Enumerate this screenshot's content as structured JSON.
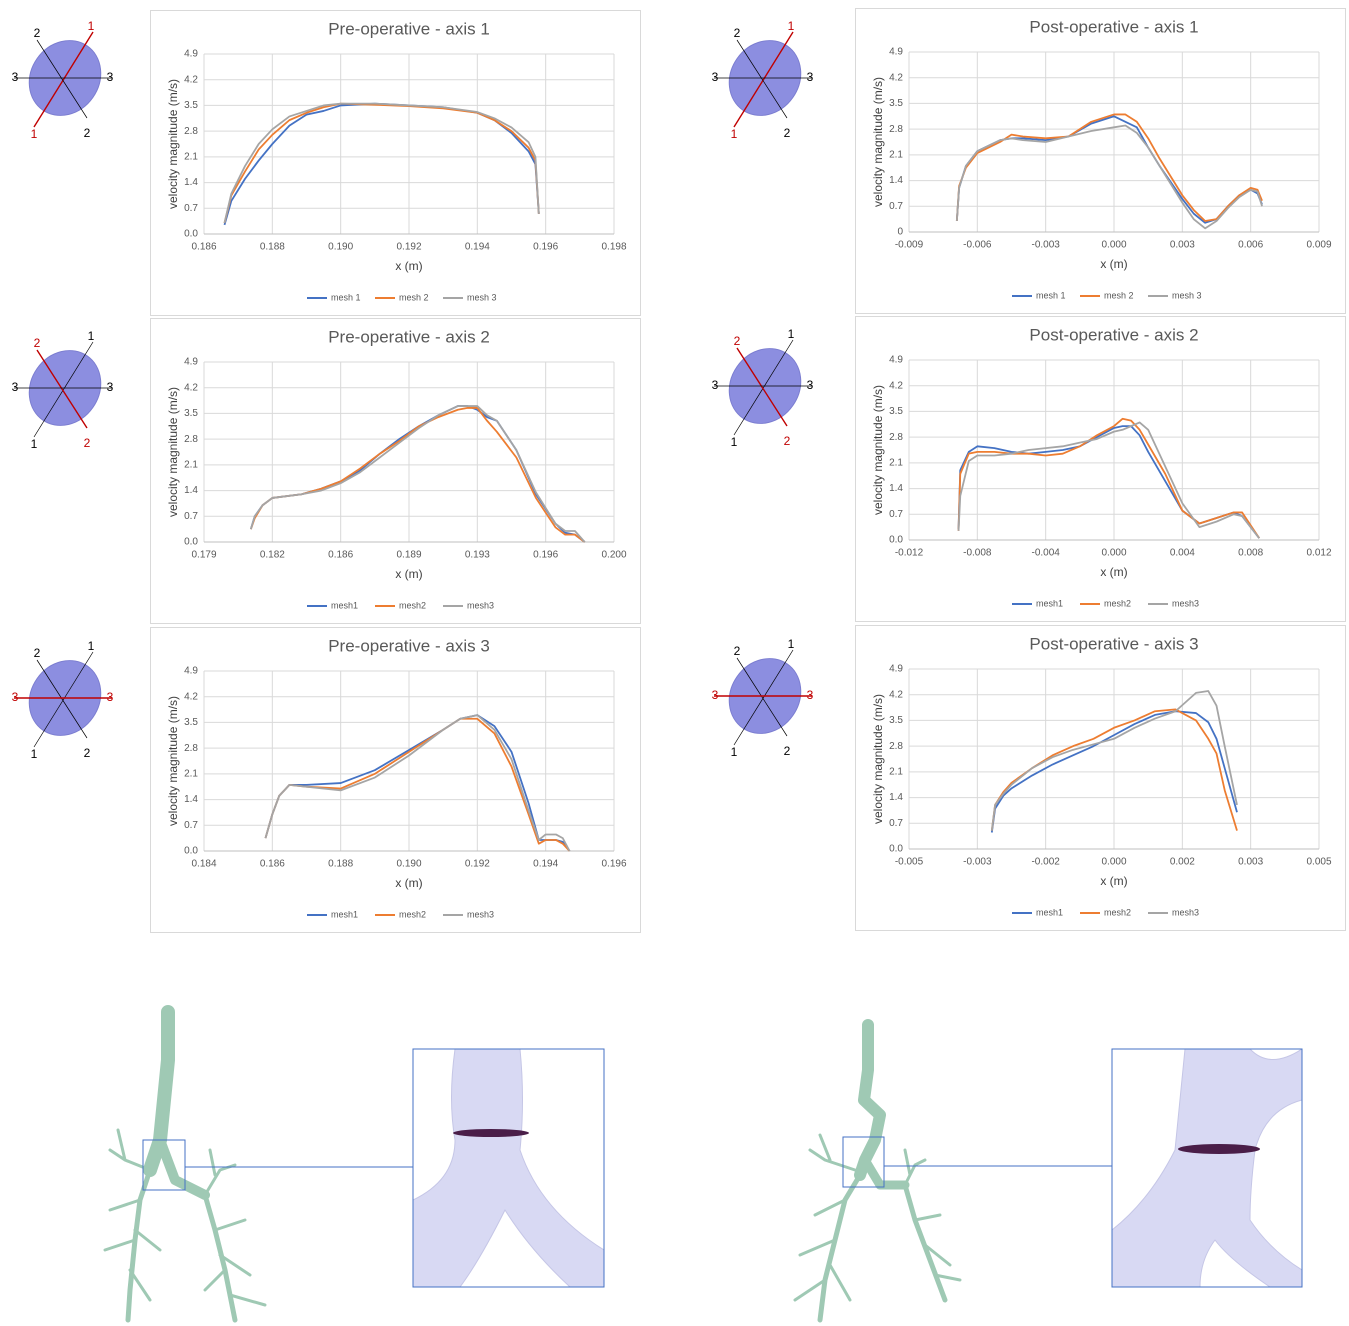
{
  "chart_data": [
    {
      "type": "line",
      "title": "Pre-operative - axis 1",
      "x_label": "x (m)",
      "y_label": "velocity magnitude (m/s)",
      "x": [
        0.1866,
        0.1868,
        0.1872,
        0.1876,
        0.188,
        0.1885,
        0.189,
        0.1895,
        0.19,
        0.191,
        0.192,
        0.193,
        0.194,
        0.1945,
        0.195,
        0.1955,
        0.1957,
        0.1958
      ],
      "series": [
        {
          "name": "mesh 1",
          "color": "#4472c4",
          "values": [
            0.25,
            0.9,
            1.5,
            2.0,
            2.45,
            2.95,
            3.25,
            3.35,
            3.5,
            3.55,
            3.5,
            3.45,
            3.3,
            3.1,
            2.75,
            2.25,
            1.9,
            0.55
          ]
        },
        {
          "name": "mesh 2",
          "color": "#ed7d31",
          "values": [
            0.3,
            1.05,
            1.7,
            2.3,
            2.7,
            3.1,
            3.3,
            3.45,
            3.55,
            3.52,
            3.48,
            3.42,
            3.3,
            3.1,
            2.8,
            2.35,
            2.0,
            0.55
          ]
        },
        {
          "name": "mesh 3",
          "color": "#a5a5a5",
          "values": [
            0.3,
            1.1,
            1.85,
            2.45,
            2.85,
            3.2,
            3.35,
            3.5,
            3.55,
            3.55,
            3.5,
            3.45,
            3.32,
            3.15,
            2.9,
            2.5,
            2.1,
            0.55
          ]
        }
      ],
      "xlim": [
        0.186,
        0.198
      ],
      "xticks": [
        0.186,
        0.188,
        {
          "value": 0.19,
          "label": "0.190"
        },
        0.192,
        0.194,
        0.196,
        0.198
      ],
      "ylim": [
        0,
        4.9
      ],
      "yticks": [
        {
          "value": 0,
          "label": "0.0"
        },
        0.7,
        1.4,
        2.1,
        2.8,
        3.5,
        4.2,
        4.9
      ],
      "grid": true,
      "legend": "bottom"
    },
    {
      "type": "line",
      "title": "Post-operative - axis 1",
      "x_label": "x (m)",
      "y_label": "velocity magnitude (m/s)",
      "x": [
        -0.0069,
        -0.0068,
        -0.0065,
        -0.006,
        -0.005,
        -0.0045,
        -0.004,
        -0.003,
        -0.002,
        -0.001,
        0,
        0.0005,
        0.001,
        0.0015,
        0.002,
        0.003,
        0.0035,
        0.004,
        0.0045,
        0.005,
        0.0055,
        0.006,
        0.0063,
        0.0065
      ],
      "series": [
        {
          "name": "mesh 1",
          "color": "#4472c4",
          "values": [
            0.3,
            1.2,
            1.8,
            2.2,
            2.5,
            2.55,
            2.55,
            2.5,
            2.6,
            2.95,
            3.15,
            3.0,
            2.85,
            2.3,
            1.8,
            0.9,
            0.5,
            0.25,
            0.35,
            0.7,
            1.0,
            1.15,
            1.05,
            0.75
          ]
        },
        {
          "name": "mesh 2",
          "color": "#ed7d31",
          "values": [
            0.3,
            1.25,
            1.75,
            2.15,
            2.45,
            2.65,
            2.6,
            2.55,
            2.6,
            3.0,
            3.2,
            3.2,
            3.0,
            2.55,
            2.0,
            1.0,
            0.6,
            0.3,
            0.35,
            0.7,
            1.0,
            1.2,
            1.15,
            0.85
          ]
        },
        {
          "name": "mesh 3",
          "color": "#a5a5a5",
          "values": [
            0.3,
            1.2,
            1.8,
            2.2,
            2.5,
            2.55,
            2.5,
            2.45,
            2.6,
            2.75,
            2.85,
            2.9,
            2.7,
            2.3,
            1.8,
            0.8,
            0.35,
            0.1,
            0.3,
            0.65,
            0.95,
            1.15,
            1.1,
            0.7
          ]
        }
      ],
      "xlim": [
        -0.009,
        0.009
      ],
      "xticks": [
        -0.009,
        -0.006,
        -0.003,
        {
          "value": 0,
          "label": "0.000"
        },
        0.003,
        0.006,
        0.009
      ],
      "ylim": [
        0,
        4.9
      ],
      "yticks": [
        0,
        0.7,
        1.4,
        2.1,
        2.8,
        3.5,
        4.2,
        4.9
      ],
      "grid": true,
      "legend": "bottom"
    },
    {
      "type": "line",
      "title": "Pre-operative - axis 2",
      "x_label": "x (m)",
      "y_label": "velocity magnitude (m/s)",
      "x": [
        0.1814,
        0.1816,
        0.182,
        0.1825,
        0.184,
        0.185,
        0.186,
        0.187,
        0.188,
        0.189,
        0.19,
        0.191,
        0.192,
        0.1925,
        0.193,
        0.1935,
        0.194,
        0.195,
        0.196,
        0.197,
        0.1975,
        0.198,
        0.1985
      ],
      "series": [
        {
          "name": "mesh1",
          "color": "#4472c4",
          "values": [
            0.35,
            0.7,
            1.0,
            1.2,
            1.3,
            1.45,
            1.65,
            1.95,
            2.4,
            2.8,
            3.15,
            3.45,
            3.7,
            3.7,
            3.6,
            3.4,
            3.3,
            2.5,
            1.3,
            0.5,
            0.25,
            0.2,
            0.0
          ]
        },
        {
          "name": "mesh2",
          "color": "#ed7d31",
          "values": [
            0.35,
            0.65,
            1.0,
            1.2,
            1.3,
            1.45,
            1.65,
            2.0,
            2.4,
            2.75,
            3.15,
            3.4,
            3.6,
            3.65,
            3.65,
            3.3,
            3.0,
            2.3,
            1.2,
            0.4,
            0.2,
            0.2,
            0.0
          ]
        },
        {
          "name": "mesh3",
          "color": "#a5a5a5",
          "values": [
            0.35,
            0.7,
            1.0,
            1.2,
            1.3,
            1.4,
            1.6,
            1.9,
            2.3,
            2.7,
            3.1,
            3.45,
            3.7,
            3.7,
            3.7,
            3.45,
            3.3,
            2.5,
            1.35,
            0.5,
            0.3,
            0.3,
            0.0
          ]
        }
      ],
      "xlim": [
        0.179,
        0.2
      ],
      "xticks": [
        0.179,
        {
          "value": 0.1825,
          "label": "0.182"
        },
        0.186,
        {
          "value": 0.1895,
          "label": "0.189"
        },
        0.193,
        {
          "value": 0.1965,
          "label": "0.196"
        },
        {
          "value": 0.2,
          "label": "0.200"
        }
      ],
      "ylim": [
        0,
        4.9
      ],
      "yticks": [
        {
          "value": 0,
          "label": "0.0"
        },
        0.7,
        1.4,
        2.1,
        2.8,
        3.5,
        4.2,
        4.9
      ],
      "grid": true,
      "legend": "bottom"
    },
    {
      "type": "line",
      "title": "Post-operative - axis 2",
      "x_label": "x (m)",
      "y_label": "velocity magnitude (m/s)",
      "x": [
        -0.0091,
        -0.009,
        -0.0085,
        -0.008,
        -0.007,
        -0.006,
        -0.005,
        -0.004,
        -0.003,
        -0.002,
        -0.001,
        0,
        0.0005,
        0.001,
        0.0015,
        0.002,
        0.003,
        0.004,
        0.005,
        0.006,
        0.007,
        0.0075,
        0.0085
      ],
      "series": [
        {
          "name": "mesh1",
          "color": "#4472c4",
          "values": [
            0.3,
            1.9,
            2.4,
            2.55,
            2.5,
            2.4,
            2.35,
            2.4,
            2.45,
            2.55,
            2.8,
            3.05,
            3.1,
            3.1,
            2.85,
            2.4,
            1.6,
            0.8,
            0.45,
            0.6,
            0.75,
            0.65,
            0.05
          ]
        },
        {
          "name": "mesh2",
          "color": "#ed7d31",
          "values": [
            0.25,
            1.8,
            2.35,
            2.4,
            2.4,
            2.35,
            2.35,
            2.3,
            2.35,
            2.55,
            2.85,
            3.1,
            3.3,
            3.25,
            3.0,
            2.6,
            1.8,
            0.8,
            0.45,
            0.6,
            0.75,
            0.75,
            0.05
          ]
        },
        {
          "name": "mesh3",
          "color": "#a5a5a5",
          "values": [
            0.25,
            1.2,
            2.15,
            2.3,
            2.3,
            2.35,
            2.45,
            2.5,
            2.55,
            2.65,
            2.75,
            2.95,
            3.0,
            3.1,
            3.2,
            3.0,
            2.0,
            1.0,
            0.35,
            0.5,
            0.7,
            0.65,
            0.05
          ]
        }
      ],
      "xlim": [
        -0.012,
        0.012
      ],
      "xticks": [
        -0.012,
        -0.008,
        -0.004,
        {
          "value": 0,
          "label": "0.000"
        },
        0.004,
        0.008,
        0.012
      ],
      "ylim": [
        0,
        4.9
      ],
      "yticks": [
        {
          "value": 0,
          "label": "0.0"
        },
        0.7,
        1.4,
        2.1,
        2.8,
        3.5,
        4.2,
        4.9
      ],
      "grid": true,
      "legend": "bottom"
    },
    {
      "type": "line",
      "title": "Pre-operative - axis 3",
      "x_label": "x (m)",
      "y_label": "velocity magnitude (m/s)",
      "x": [
        0.1858,
        0.186,
        0.1862,
        0.1865,
        0.187,
        0.188,
        0.189,
        0.19,
        0.191,
        0.1915,
        0.192,
        0.1925,
        0.193,
        0.1935,
        0.1938,
        0.194,
        0.1943,
        0.1945,
        0.1947
      ],
      "series": [
        {
          "name": "mesh1",
          "color": "#4472c4",
          "values": [
            0.35,
            1.0,
            1.5,
            1.8,
            1.8,
            1.85,
            2.2,
            2.75,
            3.3,
            3.6,
            3.7,
            3.4,
            2.7,
            1.3,
            0.3,
            0.3,
            0.3,
            0.25,
            0.0
          ]
        },
        {
          "name": "mesh2",
          "color": "#ed7d31",
          "values": [
            0.35,
            1.0,
            1.5,
            1.8,
            1.75,
            1.7,
            2.1,
            2.7,
            3.3,
            3.6,
            3.6,
            3.2,
            2.3,
            1.0,
            0.2,
            0.3,
            0.3,
            0.2,
            0.0
          ]
        },
        {
          "name": "mesh3",
          "color": "#a5a5a5",
          "values": [
            0.35,
            1.0,
            1.5,
            1.8,
            1.75,
            1.65,
            2.0,
            2.6,
            3.3,
            3.6,
            3.7,
            3.3,
            2.5,
            1.1,
            0.3,
            0.45,
            0.45,
            0.35,
            0.0
          ]
        }
      ],
      "xlim": [
        0.184,
        0.196
      ],
      "xticks": [
        0.184,
        0.186,
        0.188,
        {
          "value": 0.19,
          "label": "0.190"
        },
        0.192,
        0.194,
        0.196
      ],
      "ylim": [
        0,
        4.9
      ],
      "yticks": [
        {
          "value": 0,
          "label": "0.0"
        },
        0.7,
        1.4,
        2.1,
        2.8,
        3.5,
        4.2,
        4.9
      ],
      "grid": true,
      "legend": "bottom"
    },
    {
      "type": "line",
      "title": "Post-operative - axis 3",
      "x_label": "x (m)",
      "y_label": "velocity magnitude (m/s)",
      "x": [
        -0.00298,
        -0.0029,
        -0.0027,
        -0.0025,
        -0.002,
        -0.0015,
        -0.001,
        -0.0005,
        0,
        0.0005,
        0.001,
        0.0015,
        0.002,
        0.0023,
        0.0025,
        0.0027,
        0.003
      ],
      "series": [
        {
          "name": "mesh1",
          "color": "#4472c4",
          "values": [
            0.45,
            1.1,
            1.45,
            1.65,
            2.0,
            2.3,
            2.55,
            2.8,
            3.1,
            3.4,
            3.65,
            3.75,
            3.7,
            3.45,
            3.0,
            2.2,
            1.0
          ]
        },
        {
          "name": "mesh2",
          "color": "#ed7d31",
          "values": [
            0.5,
            1.2,
            1.55,
            1.8,
            2.2,
            2.55,
            2.8,
            3.0,
            3.3,
            3.5,
            3.75,
            3.8,
            3.5,
            3.0,
            2.6,
            1.6,
            0.5
          ]
        },
        {
          "name": "mesh3",
          "color": "#a5a5a5",
          "values": [
            0.5,
            1.2,
            1.5,
            1.75,
            2.2,
            2.5,
            2.7,
            2.85,
            3.0,
            3.3,
            3.55,
            3.75,
            4.25,
            4.3,
            3.9,
            2.8,
            1.2
          ]
        }
      ],
      "xlim": [
        -0.005,
        0.005
      ],
      "xticks": [
        -0.005,
        {
          "value": -0.003333,
          "label": "-0.003"
        },
        {
          "value": -0.001667,
          "label": "-0.002"
        },
        {
          "value": 0,
          "label": "0.000"
        },
        {
          "value": 0.001667,
          "label": "0.002"
        },
        {
          "value": 0.003333,
          "label": "0.003"
        },
        0.005
      ],
      "ylim": [
        0,
        4.9
      ],
      "yticks": [
        {
          "value": 0,
          "label": "0.0"
        },
        0.7,
        1.4,
        2.1,
        2.8,
        3.5,
        4.2,
        4.9
      ],
      "grid": true,
      "legend": "bottom"
    }
  ],
  "axis_diagrams": [
    {
      "axes": [
        {
          "label": "1",
          "highlight": true
        },
        {
          "label": "2",
          "highlight": false
        },
        {
          "label": "3",
          "highlight": false
        }
      ]
    },
    {
      "axes": [
        {
          "label": "1",
          "highlight": true
        },
        {
          "label": "2",
          "highlight": false
        },
        {
          "label": "3",
          "highlight": false
        }
      ]
    },
    {
      "axes": [
        {
          "label": "1",
          "highlight": false
        },
        {
          "label": "2",
          "highlight": true
        },
        {
          "label": "3",
          "highlight": false
        }
      ]
    },
    {
      "axes": [
        {
          "label": "1",
          "highlight": false
        },
        {
          "label": "2",
          "highlight": true
        },
        {
          "label": "3",
          "highlight": false
        }
      ]
    },
    {
      "axes": [
        {
          "label": "1",
          "highlight": false
        },
        {
          "label": "2",
          "highlight": false
        },
        {
          "label": "3",
          "highlight": true
        }
      ]
    },
    {
      "axes": [
        {
          "label": "1",
          "highlight": false
        },
        {
          "label": "2",
          "highlight": false
        },
        {
          "label": "3",
          "highlight": true
        }
      ]
    }
  ]
}
